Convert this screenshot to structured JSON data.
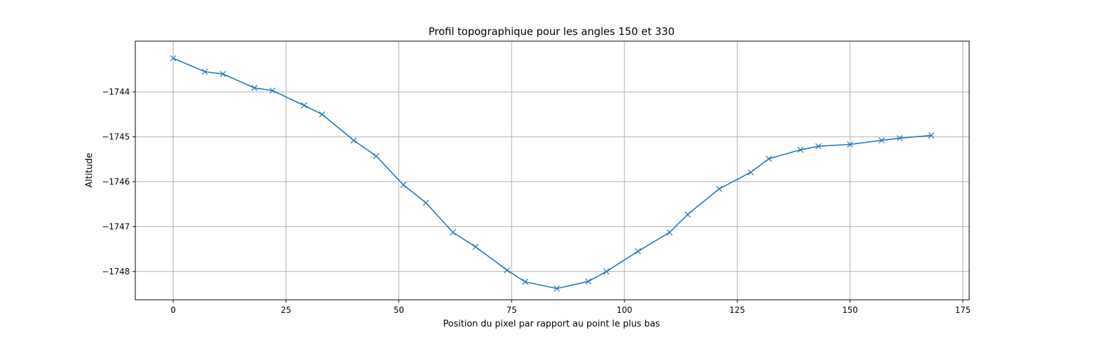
{
  "chart_data": {
    "type": "line",
    "title": "Profil topographique pour les angles 150 et 330",
    "xlabel": "Position du pixel par rapport au point le plus bas",
    "ylabel": "Altitude",
    "xlim": [
      -8.4,
      176.4
    ],
    "ylim": [
      -1748.63,
      -1742.87
    ],
    "xticks": [
      0,
      25,
      50,
      75,
      100,
      125,
      150,
      175
    ],
    "yticks": [
      -1748,
      -1747,
      -1746,
      -1745,
      -1744
    ],
    "xtick_labels": [
      "0",
      "25",
      "50",
      "75",
      "100",
      "125",
      "150",
      "175"
    ],
    "ytick_labels": [
      "−1748",
      "−1747",
      "−1746",
      "−1745",
      "−1744"
    ],
    "grid": true,
    "marker": "x",
    "color": "#1f77b4",
    "series": [
      {
        "x": [
          0,
          7,
          11,
          18,
          22,
          29,
          33,
          40,
          45,
          51,
          56,
          62,
          67,
          74,
          78,
          85,
          92,
          96,
          103,
          110,
          114,
          121,
          128,
          132,
          139,
          143,
          150,
          157,
          161,
          168
        ],
        "y": [
          -1743.25,
          -1743.55,
          -1743.6,
          -1743.91,
          -1743.97,
          -1744.3,
          -1744.5,
          -1745.08,
          -1745.43,
          -1746.07,
          -1746.47,
          -1747.13,
          -1747.45,
          -1747.97,
          -1748.23,
          -1748.38,
          -1748.22,
          -1748.0,
          -1747.55,
          -1747.13,
          -1746.73,
          -1746.16,
          -1745.79,
          -1745.49,
          -1745.29,
          -1745.21,
          -1745.17,
          -1745.08,
          -1745.03,
          -1744.97
        ]
      }
    ]
  }
}
